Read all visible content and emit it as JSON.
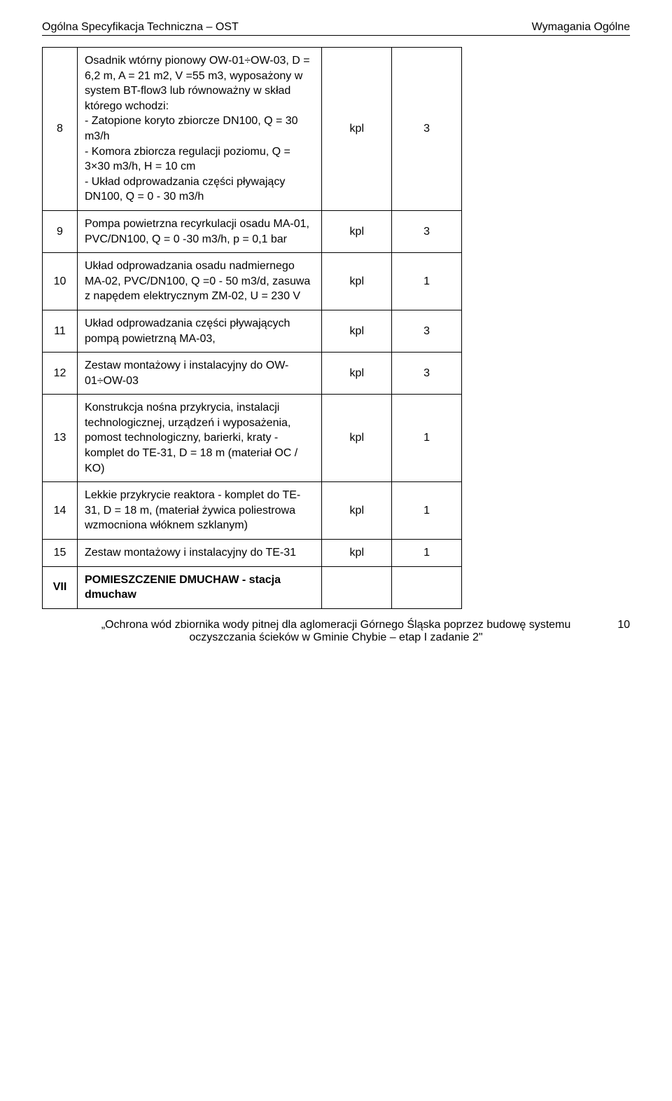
{
  "header": {
    "left": "Ogólna Specyfikacja Techniczna – OST",
    "right": "Wymagania Ogólne"
  },
  "rows": [
    {
      "num": "8",
      "desc": "Osadnik wtórny pionowy OW-01÷OW-03, D = 6,2 m, A = 21 m2, V =55 m3, wyposażony w system BT-flow3 lub równoważny w skład którego wchodzi:\n- Zatopione koryto zbiorcze DN100, Q = 30 m3/h\n- Komora zbiorcza regulacji poziomu, Q = 3×30 m3/h, H = 10 cm\n- Układ odprowadzania części pływający DN100, Q = 0 - 30 m3/h",
      "unit": "kpl",
      "qty": "3"
    },
    {
      "num": "9",
      "desc": "Pompa powietrzna recyrkulacji osadu MA-01, PVC/DN100, Q = 0 -30 m3/h, p = 0,1 bar",
      "unit": "kpl",
      "qty": "3"
    },
    {
      "num": "10",
      "desc": "Układ odprowadzania osadu nadmiernego MA-02, PVC/DN100, Q =0 - 50 m3/d, zasuwa z napędem elektrycznym ZM-02, U = 230 V",
      "unit": "kpl",
      "qty": "1"
    },
    {
      "num": "11",
      "desc": "Układ odprowadzania części pływających pompą powietrzną MA-03,",
      "unit": "kpl",
      "qty": "3"
    },
    {
      "num": "12",
      "desc": "Zestaw montażowy i instalacyjny do OW-01÷OW-03",
      "unit": "kpl",
      "qty": "3"
    },
    {
      "num": "13",
      "desc": "Konstrukcja nośna przykrycia, instalacji technologicznej, urządzeń i wyposażenia, pomost technologiczny, barierki, kraty - komplet do TE-31, D = 18 m (materiał OC / KO)",
      "unit": "kpl",
      "qty": "1"
    },
    {
      "num": "14",
      "desc": "Lekkie przykrycie reaktora - komplet do TE-31, D = 18 m, (materiał żywica poliestrowa wzmocniona włóknem szklanym)",
      "unit": "kpl",
      "qty": "1"
    },
    {
      "num": "15",
      "desc": "Zestaw montażowy i instalacyjny do TE-31",
      "unit": "kpl",
      "qty": "1"
    },
    {
      "num": "VII",
      "desc": "POMIESZCZENIE DMUCHAW - stacja dmuchaw",
      "unit": "",
      "qty": "",
      "bold": true
    }
  ],
  "footer": {
    "line1": "„Ochrona wód zbiornika wody pitnej dla aglomeracji Górnego Śląska poprzez budowę systemu",
    "line2": "oczyszczania ścieków w Gminie Chybie – etap I zadanie 2\"",
    "page": "10"
  }
}
